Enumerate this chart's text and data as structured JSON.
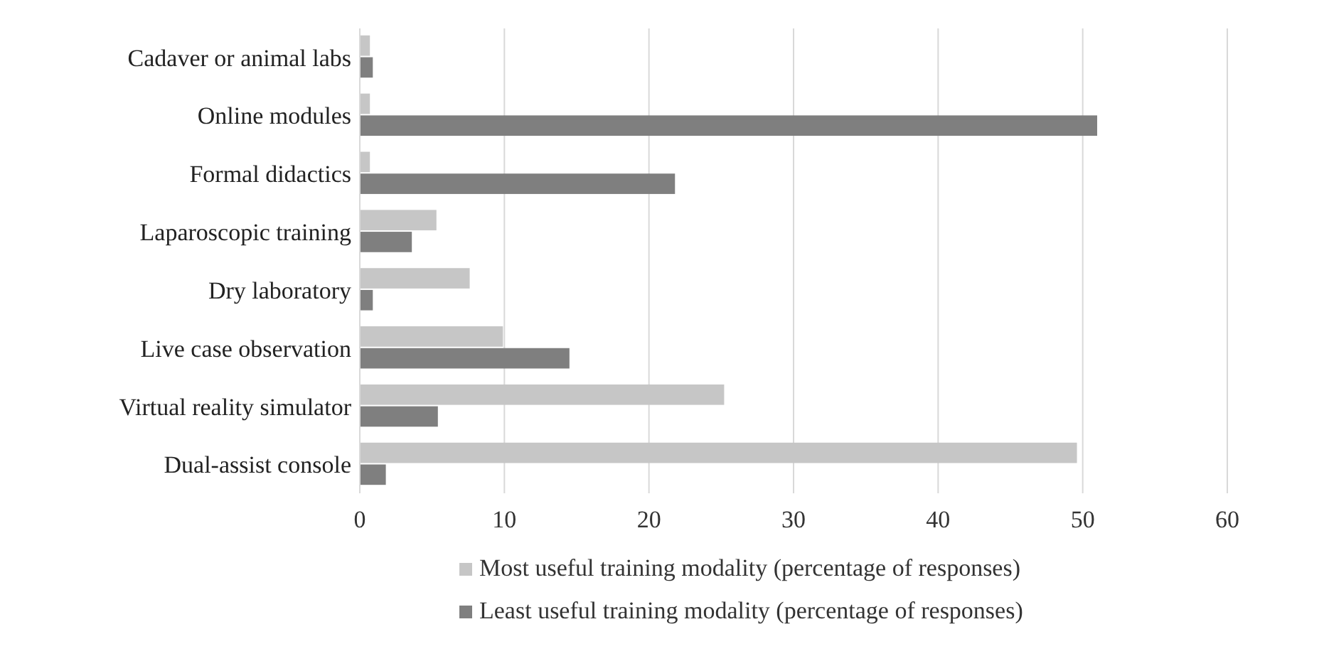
{
  "chart_data": {
    "type": "bar",
    "orientation": "horizontal",
    "categories": [
      "Cadaver or animal labs",
      "Online modules",
      "Formal didactics",
      "Laparoscopic training",
      "Dry laboratory",
      "Live case observation",
      "Virtual reality simulator",
      "Dual-assist console"
    ],
    "series": [
      {
        "name": "Most useful training modality (percentage of responses)",
        "color": "#c6c6c6",
        "values": [
          0.7,
          0.7,
          0.7,
          5.3,
          7.6,
          9.9,
          25.2,
          49.6
        ]
      },
      {
        "name": "Least useful training modality (percentage of responses)",
        "color": "#7f7f7f",
        "values": [
          0.9,
          51,
          21.8,
          3.6,
          0.9,
          14.5,
          5.4,
          1.8
        ]
      }
    ],
    "xlim": [
      0,
      60
    ],
    "xticks": [
      0,
      10,
      20,
      30,
      40,
      50,
      60
    ],
    "grid": "x",
    "legend": "bottom"
  }
}
